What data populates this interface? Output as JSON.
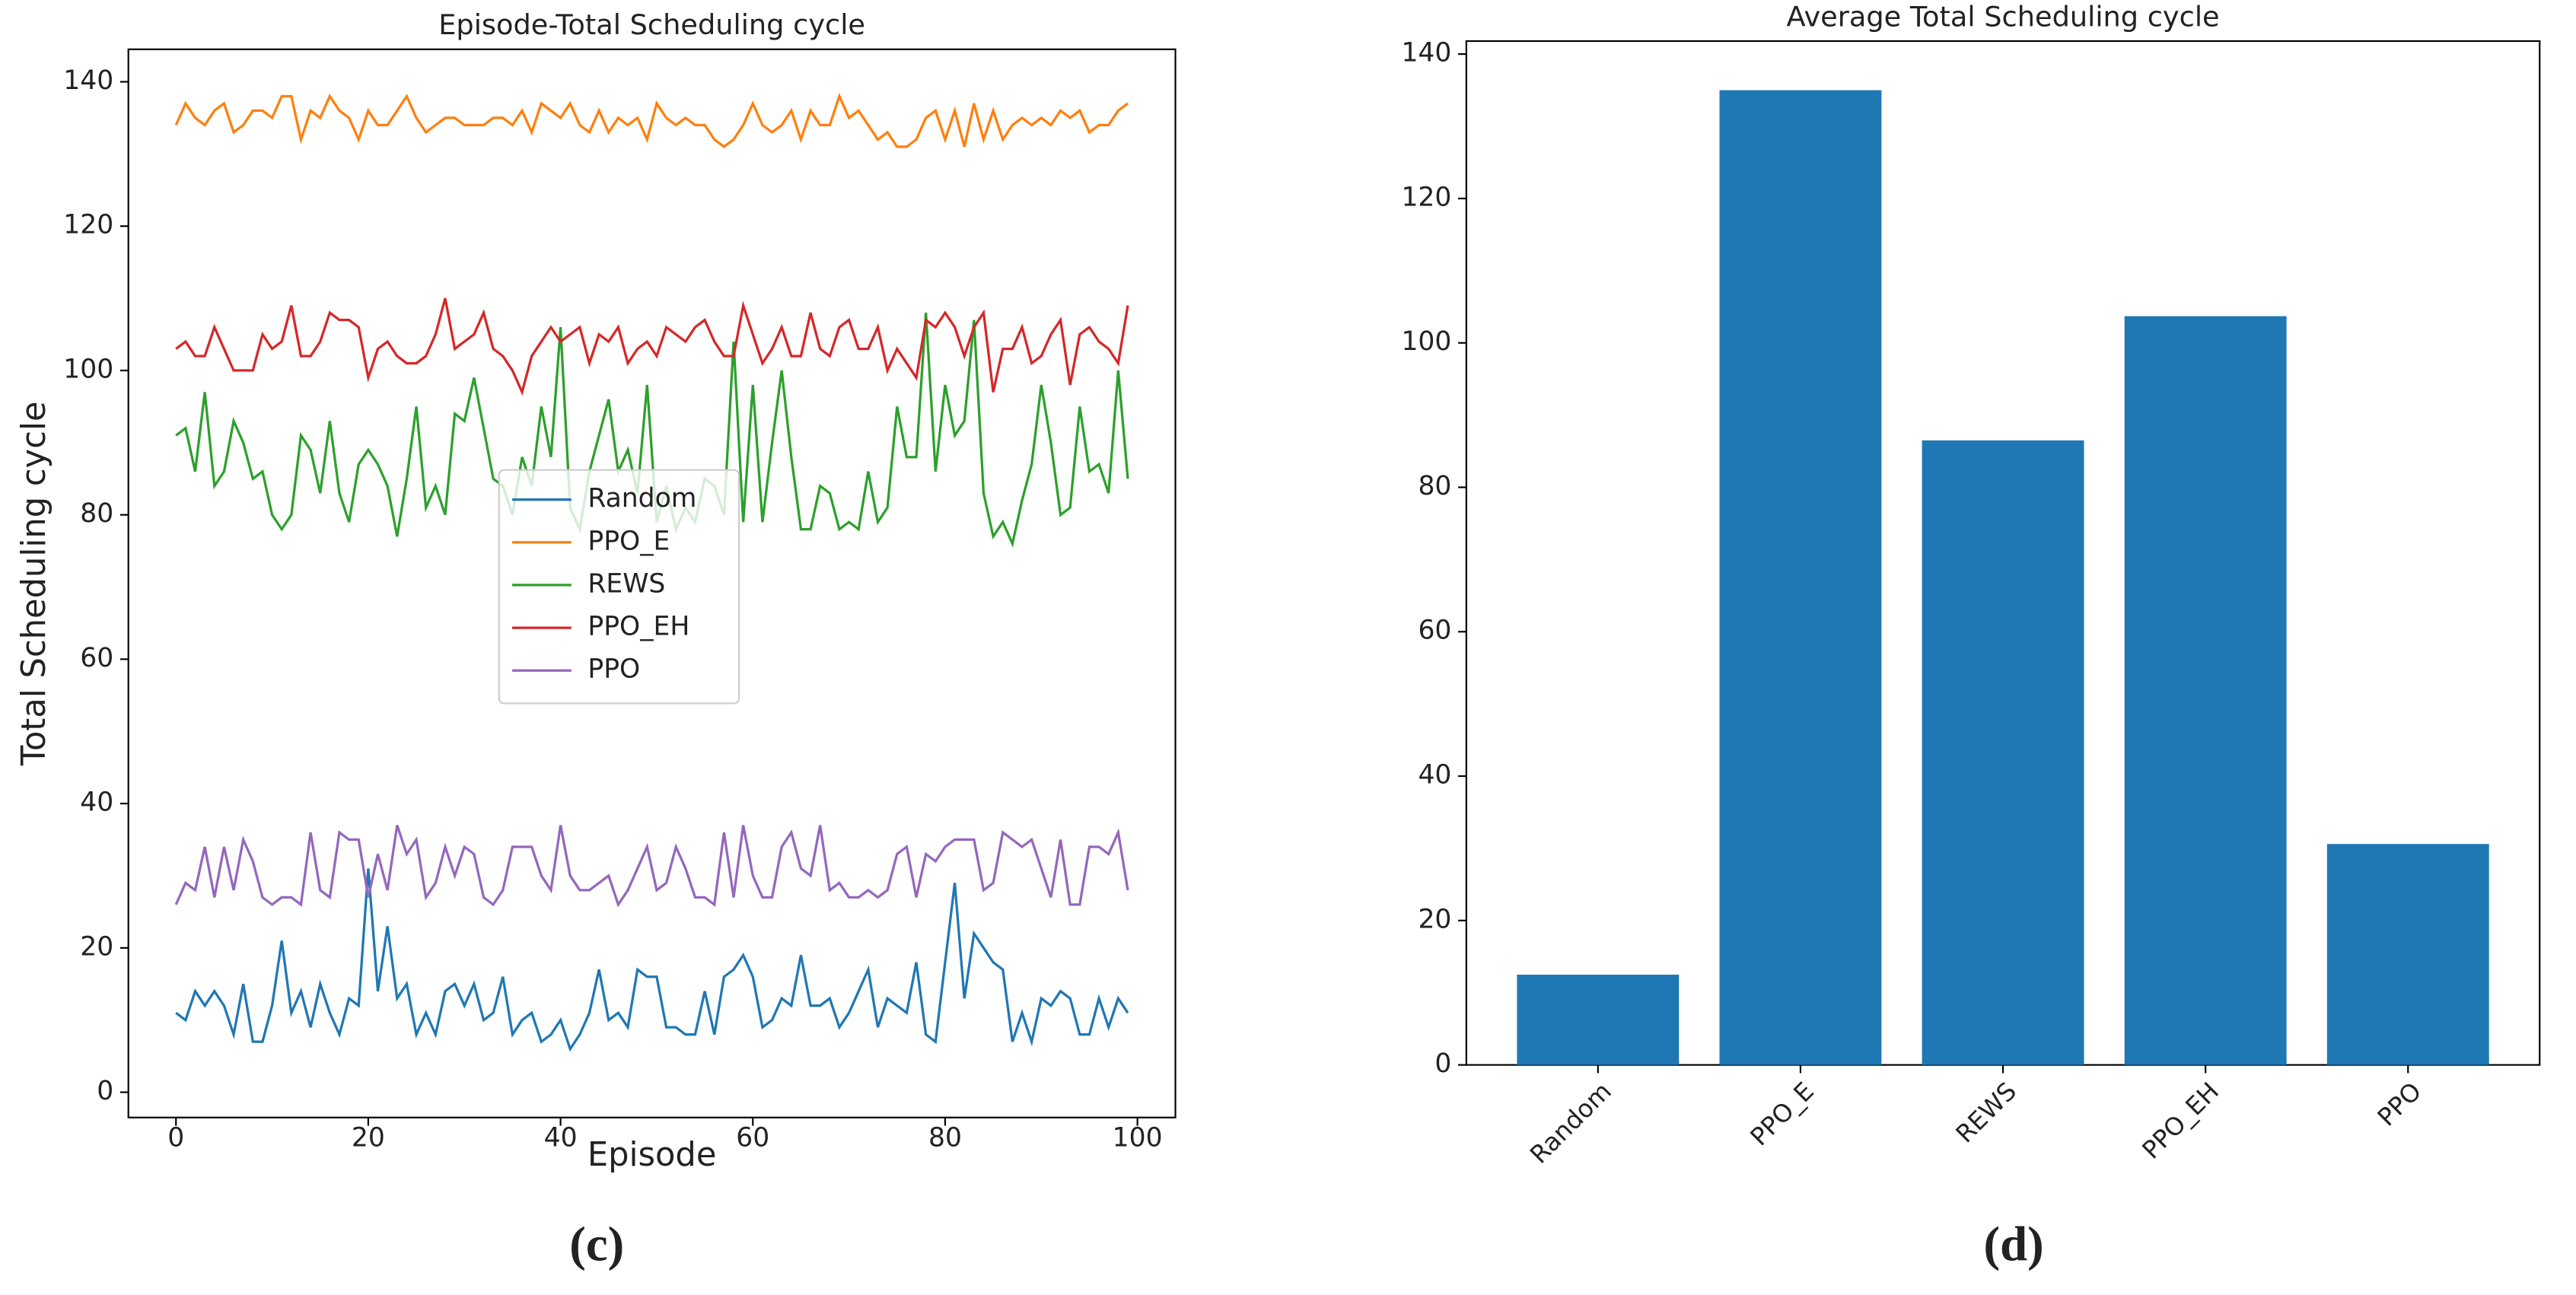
{
  "chart_data": [
    {
      "type": "line",
      "title": "Episode-Total Scheduling cycle",
      "x_label": "Episode",
      "y_label": "Total Scheduling cycle",
      "panel_label": "(c)",
      "x": [
        0,
        1,
        2,
        3,
        4,
        5,
        6,
        7,
        8,
        9,
        10,
        11,
        12,
        13,
        14,
        15,
        16,
        17,
        18,
        19,
        20,
        21,
        22,
        23,
        24,
        25,
        26,
        27,
        28,
        29,
        30,
        31,
        32,
        33,
        34,
        35,
        36,
        37,
        38,
        39,
        40,
        41,
        42,
        43,
        44,
        45,
        46,
        47,
        48,
        49,
        50,
        51,
        52,
        53,
        54,
        55,
        56,
        57,
        58,
        59,
        60,
        61,
        62,
        63,
        64,
        65,
        66,
        67,
        68,
        69,
        70,
        71,
        72,
        73,
        74,
        75,
        76,
        77,
        78,
        79,
        80,
        81,
        82,
        83,
        84,
        85,
        86,
        87,
        88,
        89,
        90,
        91,
        92,
        93,
        94,
        95,
        96,
        97,
        98,
        99
      ],
      "series": [
        {
          "name": "Random",
          "color": "#1f77b4",
          "values": [
            11,
            10,
            14,
            12,
            14,
            12,
            8,
            15,
            7,
            7,
            12,
            21,
            11,
            14,
            9,
            15,
            11,
            8,
            13,
            12,
            31,
            14,
            23,
            13,
            15,
            8,
            11,
            8,
            14,
            15,
            12,
            15,
            10,
            11,
            16,
            8,
            10,
            11,
            7,
            8,
            10,
            6,
            8,
            11,
            17,
            10,
            11,
            9,
            17,
            16,
            16,
            9,
            9,
            8,
            8,
            14,
            8,
            16,
            17,
            19,
            16,
            9,
            10,
            13,
            12,
            19,
            12,
            12,
            13,
            9,
            11,
            14,
            17,
            9,
            13,
            12,
            11,
            18,
            8,
            7,
            18,
            29,
            13,
            22,
            20,
            18,
            17,
            7,
            11,
            7,
            13,
            12,
            14,
            13,
            8,
            8,
            13,
            9,
            13,
            11
          ]
        },
        {
          "name": "PPO_E",
          "color": "#ff7f0e",
          "values": [
            134,
            137,
            135,
            134,
            136,
            137,
            133,
            134,
            136,
            136,
            135,
            138,
            138,
            132,
            136,
            135,
            138,
            136,
            135,
            132,
            136,
            134,
            134,
            136,
            138,
            135,
            133,
            134,
            135,
            135,
            134,
            134,
            134,
            135,
            135,
            134,
            136,
            133,
            137,
            136,
            135,
            137,
            134,
            133,
            136,
            133,
            135,
            134,
            135,
            132,
            137,
            135,
            134,
            135,
            134,
            134,
            132,
            131,
            132,
            134,
            137,
            134,
            133,
            134,
            136,
            132,
            136,
            134,
            134,
            138,
            135,
            136,
            134,
            132,
            133,
            131,
            131,
            132,
            135,
            136,
            132,
            136,
            131,
            137,
            132,
            136,
            132,
            134,
            135,
            134,
            135,
            134,
            136,
            135,
            136,
            133,
            134,
            134,
            136,
            137
          ]
        },
        {
          "name": "REWS",
          "color": "#2ca02c",
          "values": [
            91,
            92,
            86,
            97,
            84,
            86,
            93,
            90,
            85,
            86,
            80,
            78,
            80,
            91,
            89,
            83,
            93,
            83,
            79,
            87,
            89,
            87,
            84,
            77,
            85,
            95,
            81,
            84,
            80,
            94,
            93,
            99,
            92,
            85,
            84,
            80,
            88,
            84,
            95,
            88,
            106,
            81,
            78,
            86,
            91,
            96,
            86,
            89,
            83,
            98,
            79,
            84,
            78,
            81,
            79,
            85,
            84,
            80,
            104,
            79,
            98,
            79,
            90,
            100,
            88,
            78,
            78,
            84,
            83,
            78,
            79,
            78,
            86,
            79,
            81,
            95,
            88,
            88,
            108,
            86,
            98,
            91,
            93,
            107,
            83,
            77,
            79,
            76,
            82,
            87,
            98,
            90,
            80,
            81,
            95,
            86,
            87,
            83,
            100,
            85
          ]
        },
        {
          "name": "PPO_EH",
          "color": "#d62728",
          "values": [
            103,
            104,
            102,
            102,
            106,
            103,
            100,
            100,
            100,
            105,
            103,
            104,
            109,
            102,
            102,
            104,
            108,
            107,
            107,
            106,
            99,
            103,
            104,
            102,
            101,
            101,
            102,
            105,
            110,
            103,
            104,
            105,
            108,
            103,
            102,
            100,
            97,
            102,
            104,
            106,
            104,
            105,
            106,
            101,
            105,
            104,
            106,
            101,
            103,
            104,
            102,
            106,
            105,
            104,
            106,
            107,
            104,
            102,
            102,
            109,
            105,
            101,
            103,
            106,
            102,
            102,
            108,
            103,
            102,
            106,
            107,
            103,
            103,
            106,
            100,
            103,
            101,
            99,
            107,
            106,
            108,
            106,
            102,
            106,
            108,
            97,
            103,
            103,
            106,
            101,
            102,
            105,
            107,
            98,
            105,
            106,
            104,
            103,
            101,
            109
          ]
        },
        {
          "name": "PPO",
          "color": "#9467bd",
          "values": [
            26,
            29,
            28,
            34,
            27,
            34,
            28,
            35,
            32,
            27,
            26,
            27,
            27,
            26,
            36,
            28,
            27,
            36,
            35,
            35,
            27,
            33,
            28,
            37,
            33,
            35,
            27,
            29,
            34,
            30,
            34,
            33,
            27,
            26,
            28,
            34,
            34,
            34,
            30,
            28,
            37,
            30,
            28,
            28,
            29,
            30,
            26,
            28,
            31,
            34,
            28,
            29,
            34,
            31,
            27,
            27,
            26,
            36,
            27,
            37,
            30,
            27,
            27,
            34,
            36,
            31,
            30,
            37,
            28,
            29,
            27,
            27,
            28,
            27,
            28,
            33,
            34,
            27,
            33,
            32,
            34,
            35,
            35,
            35,
            28,
            29,
            36,
            35,
            34,
            35,
            31,
            27,
            35,
            26,
            26,
            34,
            34,
            33,
            36,
            28
          ]
        }
      ],
      "xlim": [
        -4.95,
        103.95
      ],
      "xticks": [
        0,
        20,
        40,
        60,
        80,
        100
      ],
      "ylim": [
        -3.5,
        144.5
      ],
      "yticks": [
        0,
        20,
        40,
        60,
        80,
        100,
        120,
        140
      ],
      "legend": "center"
    },
    {
      "type": "bar",
      "title": "Average Total Scheduling cycle",
      "panel_label": "(d)",
      "categories": [
        "Random",
        "PPO_E",
        "REWS",
        "PPO_EH",
        "PPO"
      ],
      "values": [
        12.5,
        135,
        86.5,
        103.7,
        30.6
      ],
      "color": "#1f77b4",
      "ylim": [
        0,
        141.8
      ],
      "yticks": [
        0,
        20,
        40,
        60,
        80,
        100,
        120,
        140
      ]
    }
  ]
}
